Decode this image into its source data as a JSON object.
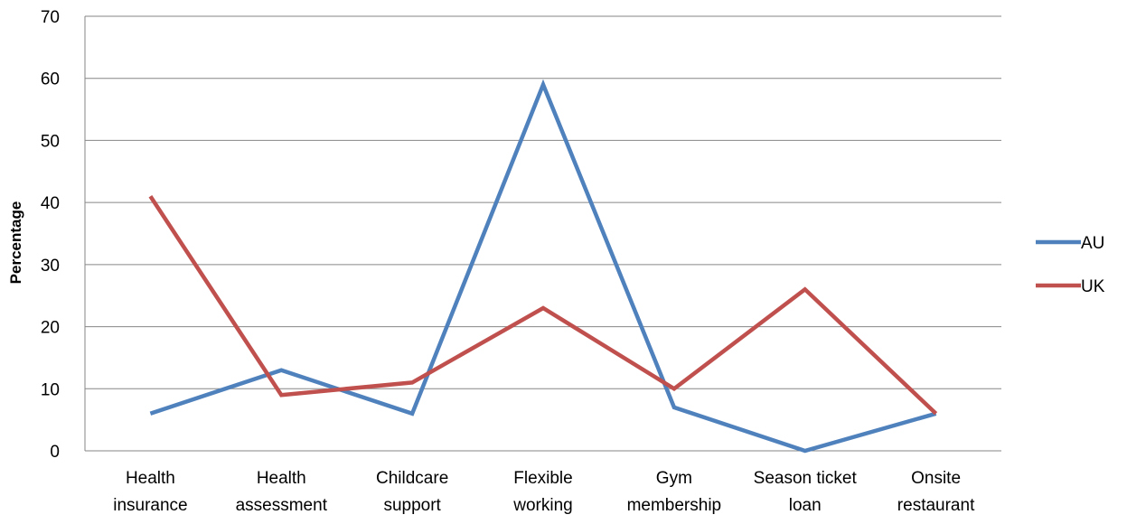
{
  "chart_data": {
    "type": "line",
    "categories": [
      [
        "Health",
        "insurance"
      ],
      [
        "Health",
        "assessment"
      ],
      [
        "Childcare",
        "support"
      ],
      [
        "Flexible",
        "working"
      ],
      [
        "Gym",
        "membership"
      ],
      [
        "Season ticket",
        "loan"
      ],
      [
        "Onsite",
        "restaurant"
      ]
    ],
    "series": [
      {
        "name": "AU",
        "color": "#4F81BD",
        "values": [
          6,
          13,
          6,
          59,
          7,
          0,
          6
        ]
      },
      {
        "name": "UK",
        "color": "#C0504D",
        "values": [
          41,
          9,
          11,
          23,
          10,
          26,
          6
        ]
      }
    ],
    "xlabel": "",
    "ylabel": "Percentage",
    "ylim": [
      0,
      70
    ],
    "yticks": [
      "0",
      "10",
      "20",
      "30",
      "40",
      "50",
      "60",
      "70"
    ],
    "grid": true,
    "legend": "right"
  }
}
